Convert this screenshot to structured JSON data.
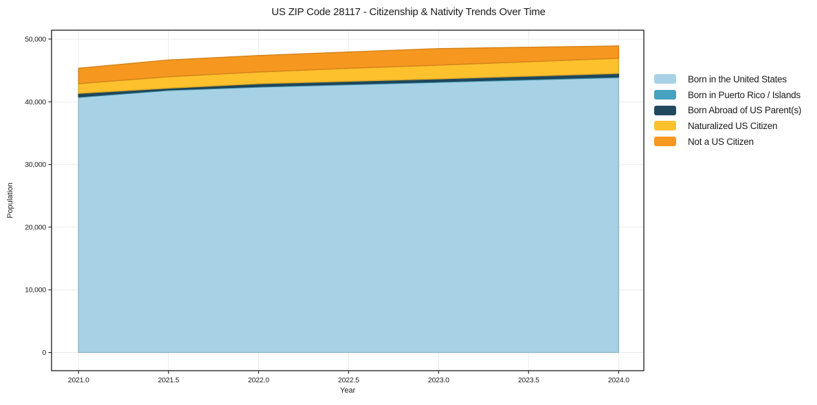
{
  "chart_data": {
    "type": "area",
    "stacked": true,
    "title": "US ZIP Code 28117 - Citizenship & Nativity Trends Over Time",
    "xlabel": "Year",
    "ylabel": "Population",
    "x": [
      2021.0,
      2021.5,
      2022.0,
      2022.5,
      2023.0,
      2023.5,
      2024.0
    ],
    "series": [
      {
        "name": "Born in the United States",
        "color": "#a7d2e5",
        "values": [
          40700,
          41810,
          42340,
          42730,
          43110,
          43490,
          43870
        ]
      },
      {
        "name": "Born in Puerto Rico / Islands",
        "color": "#47a2c2",
        "values": [
          120,
          120,
          120,
          120,
          120,
          130,
          140
        ]
      },
      {
        "name": "Born Abroad of US Parent(s)",
        "color": "#20495e",
        "values": [
          530,
          250,
          430,
          420,
          430,
          480,
          520
        ]
      },
      {
        "name": "Naturalized US Citizen",
        "color": "#fcc12d",
        "values": [
          1540,
          1820,
          1860,
          2080,
          2190,
          2300,
          2410
        ]
      },
      {
        "name": "Not a US Citizen",
        "color": "#f6981f",
        "values": [
          2460,
          2670,
          2630,
          2590,
          2630,
          2300,
          1970
        ]
      }
    ],
    "x_ticks": [
      2021.0,
      2021.5,
      2022.0,
      2022.5,
      2023.0,
      2023.5,
      2024.0
    ],
    "y_ticks": [
      0,
      10000,
      20000,
      30000,
      40000,
      50000
    ],
    "xlim": [
      2020.85,
      2024.14
    ],
    "ylim": [
      -2900,
      51420
    ],
    "grid": true,
    "legend_position": "right-outside",
    "axis_color": "#1a1a1a",
    "grid_color": "#ebebeb",
    "background_color": "#ffffff"
  }
}
